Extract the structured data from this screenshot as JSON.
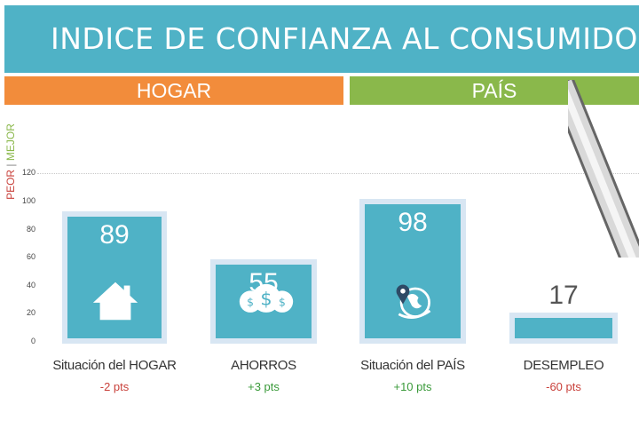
{
  "header": {
    "title": "INDICE DE CONFIANZA AL CONSUMIDOR"
  },
  "sections": {
    "hogar": "HOGAR",
    "pais": "PAÍS"
  },
  "axis": {
    "peor": "PEOR",
    "separator": "|",
    "mejor": "MEJOR"
  },
  "colors": {
    "title_bg": "#4fb2c6",
    "hogar_bg": "#f28c3b",
    "pais_bg": "#8ab84b",
    "bar": "#4fb2c6",
    "bar_frame": "#d8e6f3",
    "negative": "#c9413b",
    "positive": "#3a9a3a"
  },
  "chart_data": {
    "type": "bar",
    "categories": [
      "Situación del HOGAR",
      "AHORROS",
      "Situación del PAÍS",
      "DESEMPLEO"
    ],
    "values": [
      89,
      55,
      98,
      17
    ],
    "value_labels": [
      "89",
      "55",
      "98",
      "17"
    ],
    "changes": [
      "-2 pts",
      "+3 pts",
      "+10 pts",
      "-60 pts"
    ],
    "icons": [
      "house-icon",
      "money-bags-icon",
      "globe-icon",
      null
    ],
    "yticks": [
      0,
      20,
      40,
      60,
      80,
      100,
      120
    ],
    "ylim": [
      0,
      120
    ],
    "grid": true
  }
}
